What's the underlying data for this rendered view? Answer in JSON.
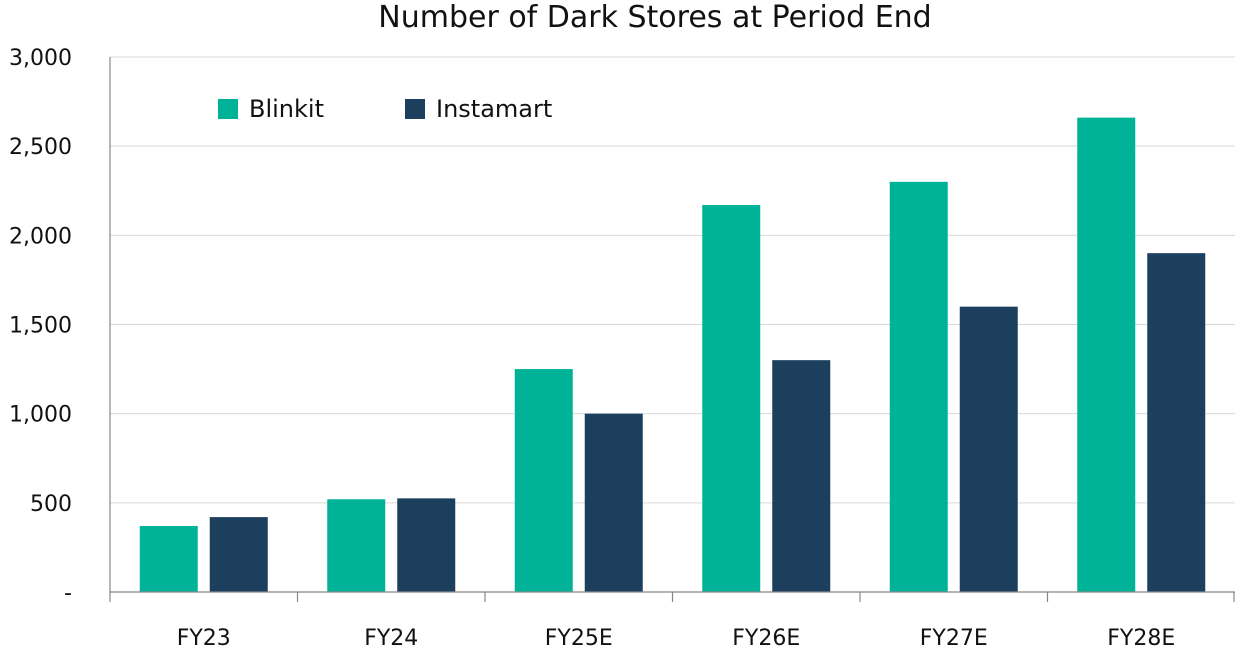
{
  "chart_data": {
    "type": "bar",
    "title": "Number of Dark Stores at Period End",
    "xlabel": "",
    "ylabel": "",
    "categories": [
      "FY23",
      "FY24",
      "FY25E",
      "FY26E",
      "FY27E",
      "FY28E"
    ],
    "series": [
      {
        "name": "Blinkit",
        "color": "#00B398",
        "values": [
          370,
          520,
          1250,
          2170,
          2300,
          2660
        ]
      },
      {
        "name": "Instamart",
        "color": "#1C3F5E",
        "values": [
          420,
          525,
          1000,
          1300,
          1600,
          1900
        ]
      }
    ],
    "ylim": [
      0,
      3000
    ],
    "yticks": [
      0,
      500,
      1000,
      1500,
      2000,
      2500,
      3000
    ],
    "ytick_labels": [
      "-",
      "500",
      "1,000",
      "1,500",
      "2,000",
      "2,500",
      "3,000"
    ],
    "grid": true,
    "legend_position": "top-left"
  }
}
